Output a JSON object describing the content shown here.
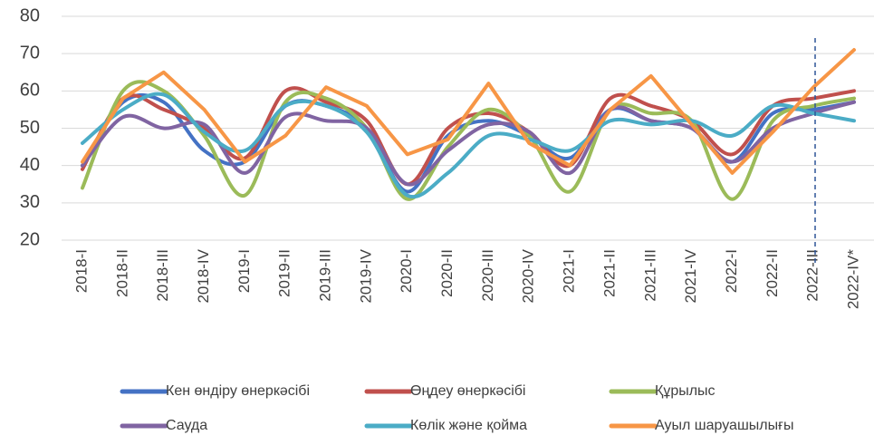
{
  "chart_data": {
    "type": "line",
    "categories": [
      "2018-I",
      "2018-II",
      "2018-III",
      "2018-IV",
      "2019-I",
      "2019-II",
      "2019-III",
      "2019-IV",
      "2020-I",
      "2020-II",
      "2020-III",
      "2020-IV",
      "2021-I",
      "2021-II",
      "2021-III",
      "2021-IV",
      "2022-I",
      "2022-II",
      "2022-III",
      "2022-IV*"
    ],
    "ylim": [
      20,
      80
    ],
    "yticks": [
      20,
      30,
      40,
      50,
      60,
      70,
      80
    ],
    "grid": true,
    "legend": "bottom",
    "series": [
      {
        "name": "Кен өндіру өнеркәсібі",
        "color": "#4472c4",
        "smooth": true,
        "values": [
          40,
          57,
          57,
          44,
          41,
          56,
          56,
          50,
          33,
          48,
          52,
          48,
          42,
          55,
          52,
          50,
          41,
          54,
          55,
          57
        ]
      },
      {
        "name": "Өңдеу өнеркәсібі",
        "color": "#c0504d",
        "smooth": true,
        "values": [
          39,
          58,
          55,
          50,
          42,
          60,
          57,
          52,
          35,
          50,
          54,
          49,
          40,
          58,
          56,
          52,
          43,
          56,
          58,
          60
        ]
      },
      {
        "name": "Құрылыс",
        "color": "#9bbb59",
        "smooth": true,
        "values": [
          34,
          60,
          60,
          48,
          32,
          57,
          58,
          50,
          31,
          45,
          55,
          48,
          33,
          55,
          54,
          52,
          31,
          52,
          56,
          58
        ]
      },
      {
        "name": "Сауда",
        "color": "#8064a2",
        "smooth": true,
        "values": [
          40,
          53,
          50,
          51,
          38,
          53,
          52,
          50,
          35,
          44,
          51,
          49,
          38,
          55,
          52,
          50,
          41,
          50,
          54,
          57
        ]
      },
      {
        "name": "Көлік және қойма",
        "color": "#4bacc6",
        "smooth": true,
        "values": [
          46,
          55,
          59,
          49,
          44,
          56,
          56,
          49,
          32,
          38,
          48,
          47,
          44,
          52,
          51,
          52,
          48,
          56,
          54,
          52
        ]
      },
      {
        "name": "Ауыл шаруашылығы",
        "color": "#f79646",
        "smooth": false,
        "values": [
          41,
          58,
          65,
          55,
          41,
          48,
          61,
          56,
          43,
          47,
          62,
          46,
          40,
          55,
          64,
          51,
          38,
          49,
          61,
          71
        ]
      }
    ]
  }
}
